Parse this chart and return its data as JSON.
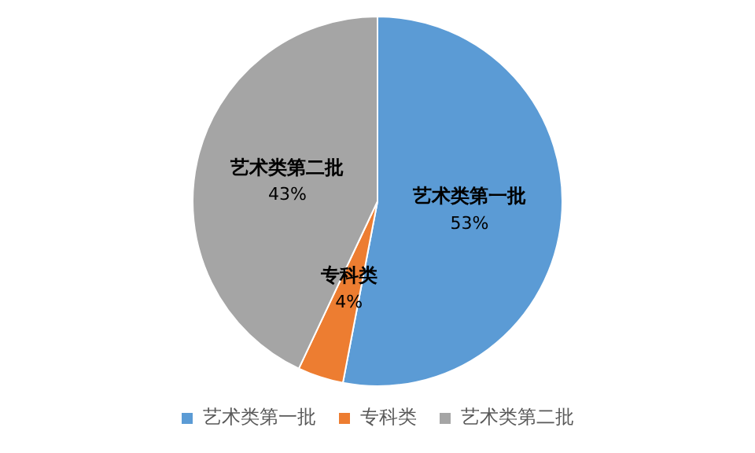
{
  "chart_data": {
    "type": "pie",
    "categories": [
      "艺术类第一批",
      "专科类",
      "艺术类第二批"
    ],
    "values": [
      53,
      4,
      43
    ],
    "colors": [
      "#5b9bd5",
      "#ed7d31",
      "#a5a5a5"
    ],
    "value_labels": [
      "53%",
      "4%",
      "43%"
    ],
    "legend": "bottom"
  }
}
